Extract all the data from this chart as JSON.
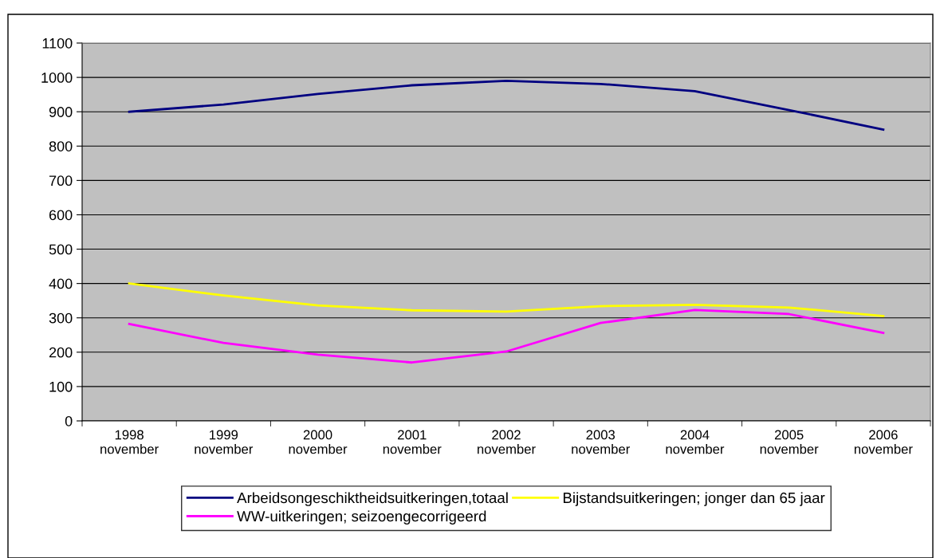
{
  "chart_data": {
    "type": "line",
    "categories": [
      "1998\nnovember",
      "1999\nnovember",
      "2000\nnovember",
      "2001\nnovember",
      "2002\nnovember",
      "2003\nnovember",
      "2004\nnovember",
      "2005\nnovember",
      "2006\nnovember"
    ],
    "series": [
      {
        "name": "Arbeidsongeschiktheidsuitkeringen,totaal",
        "color": "#000080",
        "values": [
          900,
          921,
          952,
          977,
          990,
          981,
          960,
          905,
          848
        ]
      },
      {
        "name": "WW-uitkeringen; seizoengecorrigeerd",
        "color": "#ff00ff",
        "values": [
          282,
          227,
          193,
          170,
          202,
          285,
          323,
          311,
          256
        ]
      },
      {
        "name": "Bijstandsuitkeringen; jonger dan 65 jaar",
        "color": "#ffff00",
        "values": [
          400,
          365,
          336,
          322,
          318,
          334,
          338,
          330,
          305
        ]
      }
    ],
    "ylim": [
      0,
      1100
    ],
    "yticks": [
      0,
      100,
      200,
      300,
      400,
      500,
      600,
      700,
      800,
      900,
      1000,
      1100
    ],
    "grid": "y",
    "legend": "bottom",
    "marker": "none",
    "line_style": "solid"
  }
}
